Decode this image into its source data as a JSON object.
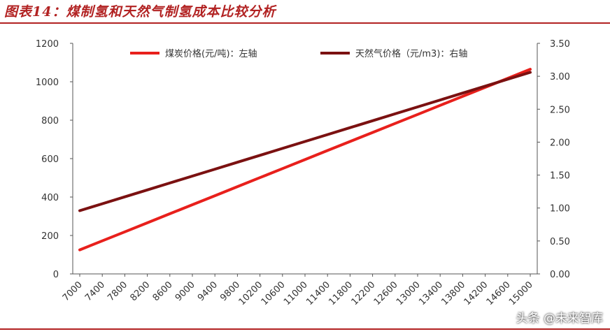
{
  "figure": {
    "title": "图表14：煤制氢和天然气制氢成本比较分析",
    "watermark": "头条 @未来智库"
  },
  "chart_data": {
    "type": "line",
    "title": "",
    "xlabel": "",
    "ylabel": "",
    "x": [
      7000,
      7400,
      7800,
      8200,
      8600,
      9000,
      9400,
      9800,
      10200,
      10600,
      11000,
      11400,
      11800,
      12200,
      12600,
      13000,
      13400,
      13800,
      14200,
      14600,
      15000
    ],
    "xlim": [
      7000,
      15000
    ],
    "y_left": {
      "lim": [
        0,
        1200
      ],
      "ticks": [
        0,
        200,
        400,
        600,
        800,
        1000,
        1200
      ]
    },
    "y_right": {
      "lim": [
        0,
        3.5
      ],
      "ticks": [
        "0.00",
        "0.50",
        "1.00",
        "1.50",
        "2.00",
        "2.50",
        "3.00",
        "3.50"
      ]
    },
    "grid": false,
    "legend_position": "top",
    "series": [
      {
        "name": "煤炭价格(元/吨)：左轴",
        "axis": "left",
        "color": "#e8201c",
        "values": [
          125,
          172,
          219,
          266,
          313,
          360,
          407,
          454,
          501,
          548,
          595,
          642,
          689,
          736,
          783,
          830,
          877,
          924,
          971,
          1018,
          1065
        ]
      },
      {
        "name": "天然气价格（元/m3)：右轴",
        "axis": "right",
        "color": "#7b1111",
        "values": [
          0.96,
          1.065,
          1.17,
          1.275,
          1.38,
          1.485,
          1.59,
          1.695,
          1.8,
          1.905,
          2.01,
          2.115,
          2.22,
          2.325,
          2.43,
          2.535,
          2.64,
          2.745,
          2.85,
          2.955,
          3.06
        ]
      }
    ]
  }
}
